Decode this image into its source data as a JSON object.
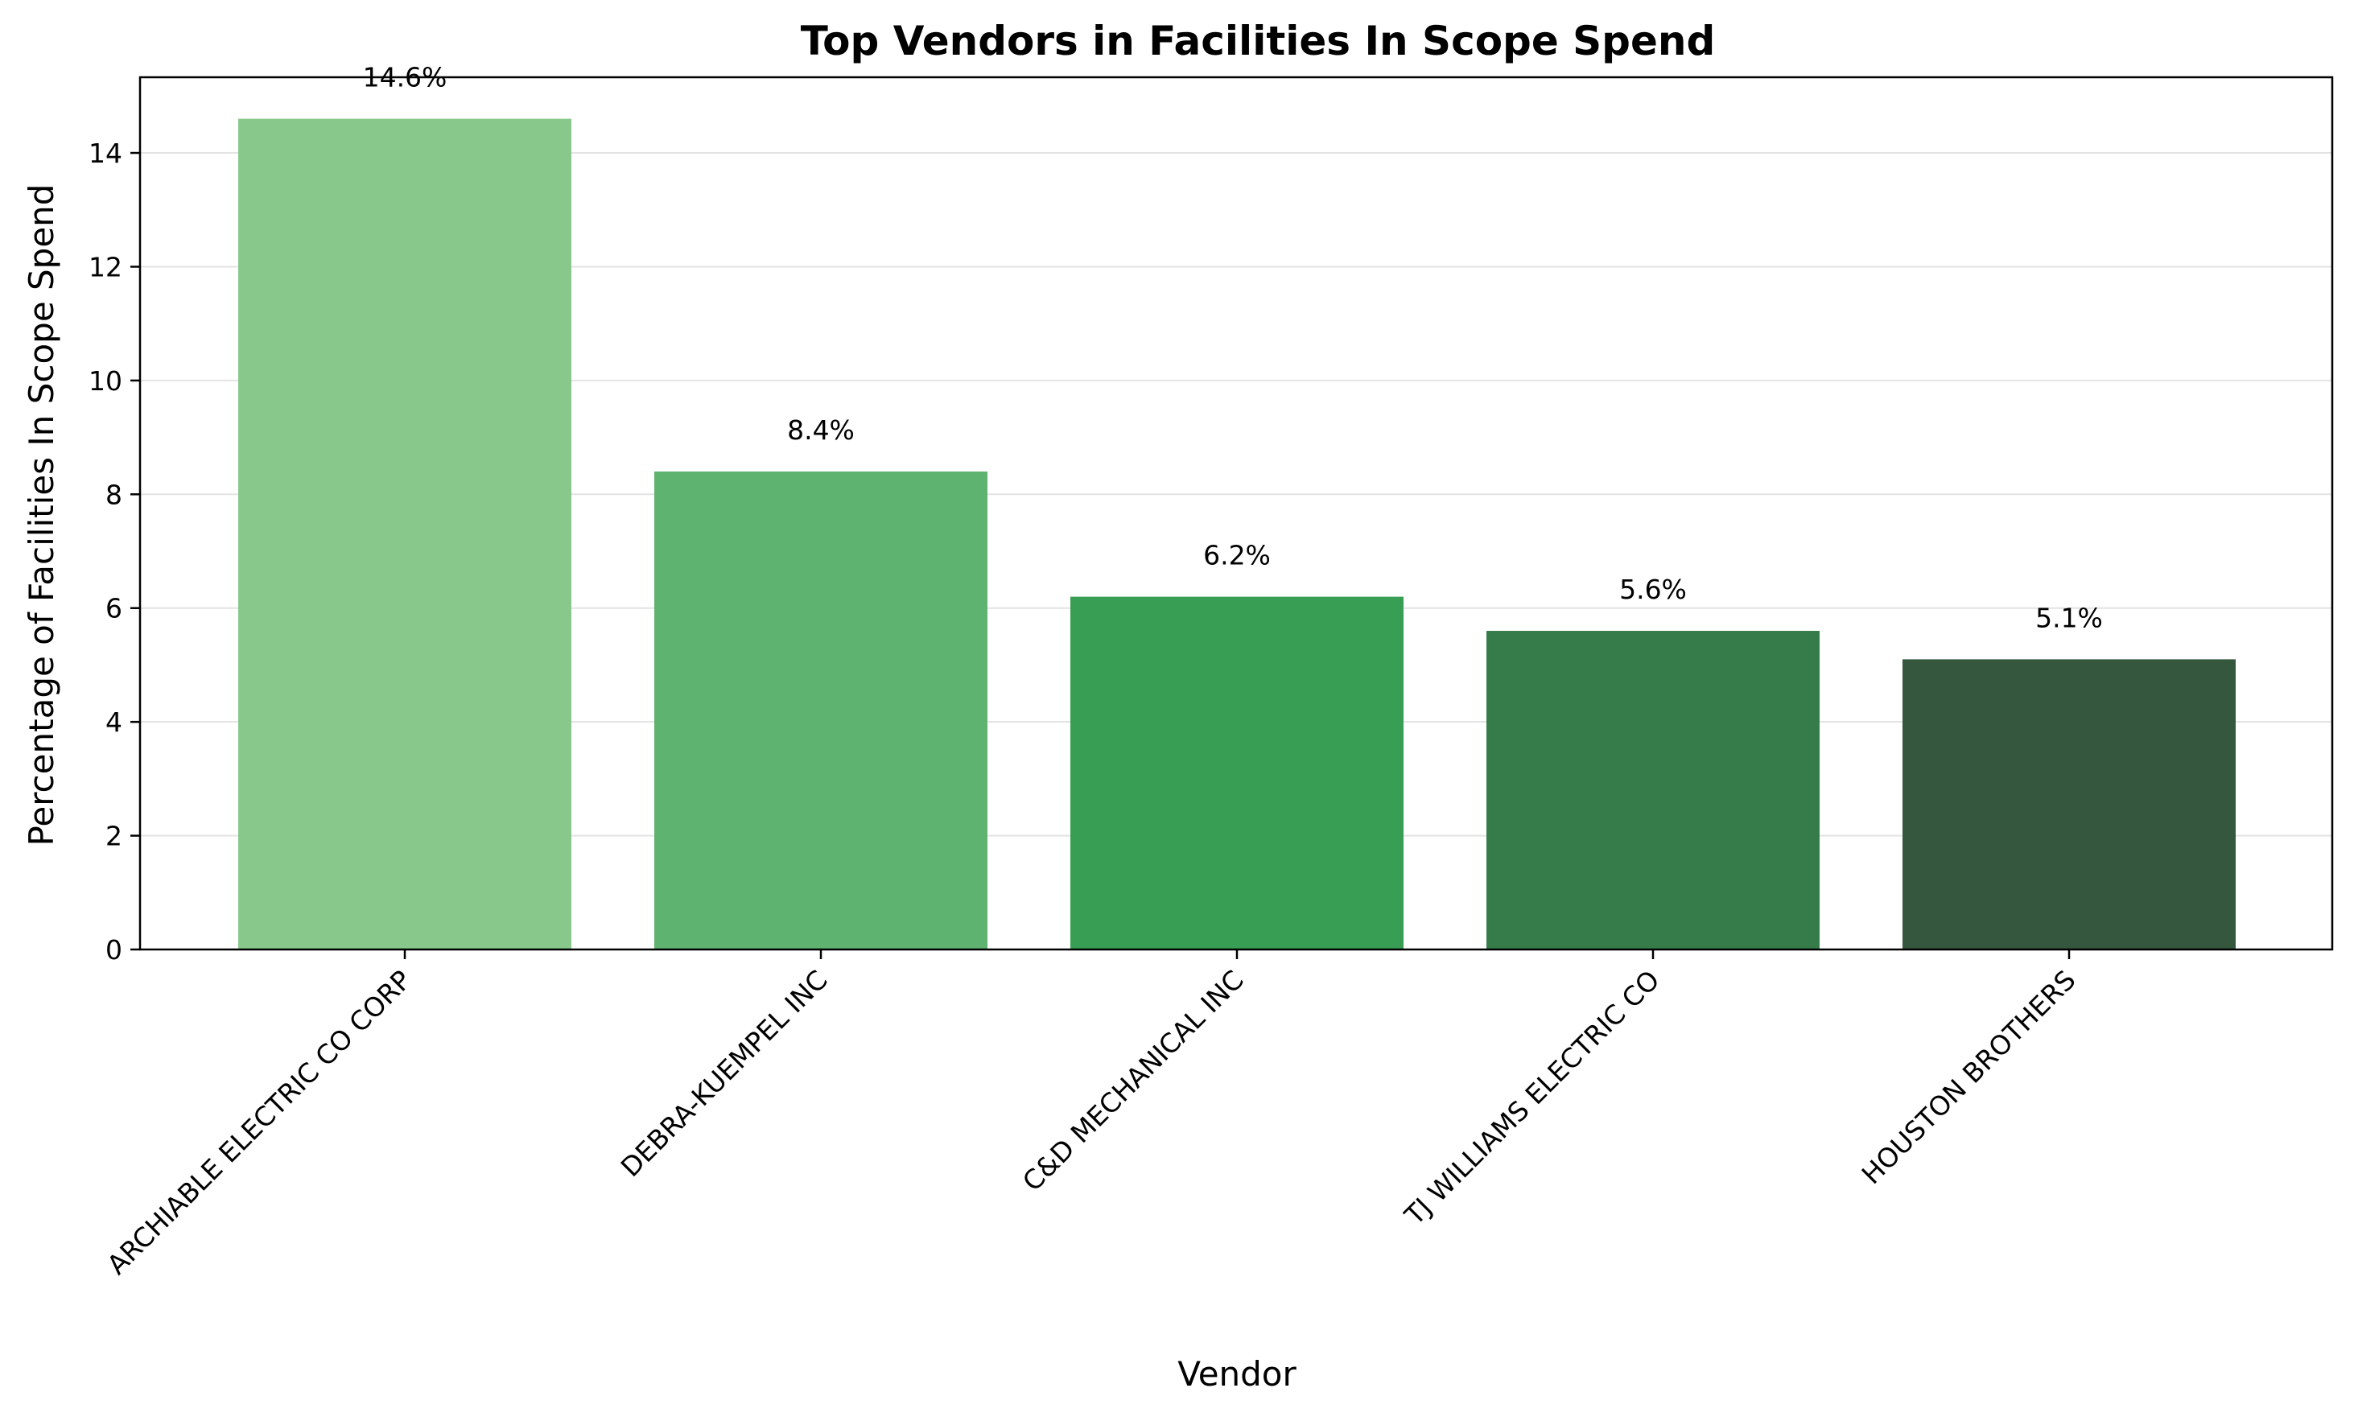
{
  "chart_data": {
    "type": "bar",
    "title": "Top Vendors in Facilities In Scope Spend",
    "xlabel": "Vendor",
    "ylabel": "Percentage of Facilities In Scope Spend",
    "categories": [
      "ARCHIABLE ELECTRIC CO CORP",
      "DEBRA-KUEMPEL INC",
      "C&D MECHANICAL INC",
      "TJ WILLIAMS ELECTRIC CO",
      "HOUSTON BROTHERS"
    ],
    "values": [
      14.6,
      8.4,
      6.2,
      5.6,
      5.1
    ],
    "data_labels": [
      "14.6%",
      "8.4%",
      "6.2%",
      "5.6%",
      "5.1%"
    ],
    "colors": [
      "#88c98b",
      "#5fb370",
      "#389e53",
      "#357c4a",
      "#34573e"
    ],
    "yticks": [
      0,
      2,
      4,
      6,
      8,
      10,
      12,
      14
    ],
    "ylim": [
      0,
      15.33
    ],
    "grid": "y",
    "legend": "none"
  }
}
